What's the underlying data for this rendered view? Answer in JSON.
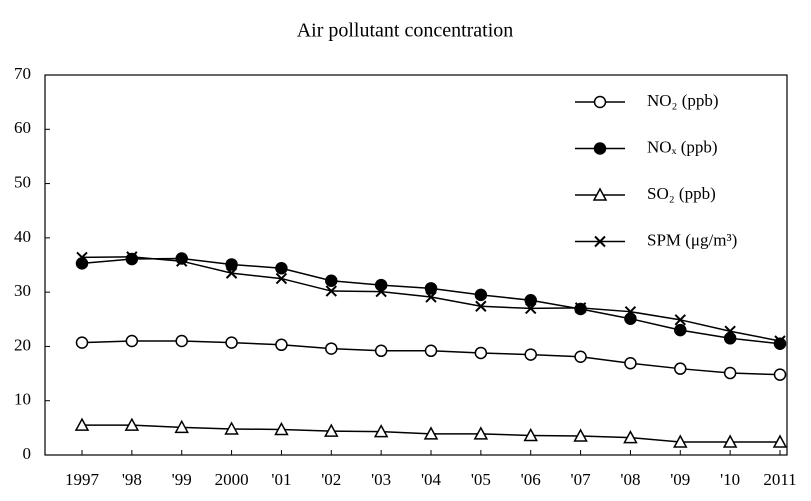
{
  "chart_data": {
    "type": "line",
    "title": "Air pollutant concentration",
    "categories": [
      "1997",
      "'98",
      "'99",
      "2000",
      "'01",
      "'02",
      "'03",
      "'04",
      "'05",
      "'06",
      "'07",
      "'08",
      "'09",
      "'10",
      "2011"
    ],
    "series": [
      {
        "name": "NO₂ (ppb)",
        "color": "#000000",
        "marker": "circle-open",
        "values": [
          20.7,
          21,
          21,
          20.7,
          20.3,
          19.6,
          19.2,
          19.2,
          18.8,
          18.5,
          18.1,
          16.9,
          15.9,
          15.1,
          14.8
        ]
      },
      {
        "name": "NOₓ (ppb)",
        "color": "#000000",
        "marker": "circle-filled",
        "values": [
          35.3,
          36.1,
          36.2,
          35.1,
          34.4,
          32.1,
          31.3,
          30.7,
          29.5,
          28.5,
          26.9,
          25.1,
          23,
          21.5,
          20.5
        ]
      },
      {
        "name": "SO₂ (ppb)",
        "color": "#000000",
        "marker": "triangle-open",
        "values": [
          5.5,
          5.5,
          5.1,
          4.8,
          4.7,
          4.4,
          4.3,
          3.9,
          3.9,
          3.6,
          3.5,
          3.2,
          2.4,
          2.4,
          2.4
        ]
      },
      {
        "name": "SPM (μg/m³)",
        "color": "#000000",
        "marker": "x",
        "values": [
          36.4,
          36.5,
          35.7,
          33.5,
          32.5,
          30.2,
          30.1,
          29.1,
          27.4,
          27.0,
          27.1,
          26.4,
          24.9,
          22.8,
          21.0
        ]
      }
    ],
    "ylim": [
      0,
      70
    ],
    "yticks": [
      0,
      10,
      20,
      30,
      40,
      50,
      60,
      70
    ],
    "grid": false,
    "legend": "upper-right"
  }
}
